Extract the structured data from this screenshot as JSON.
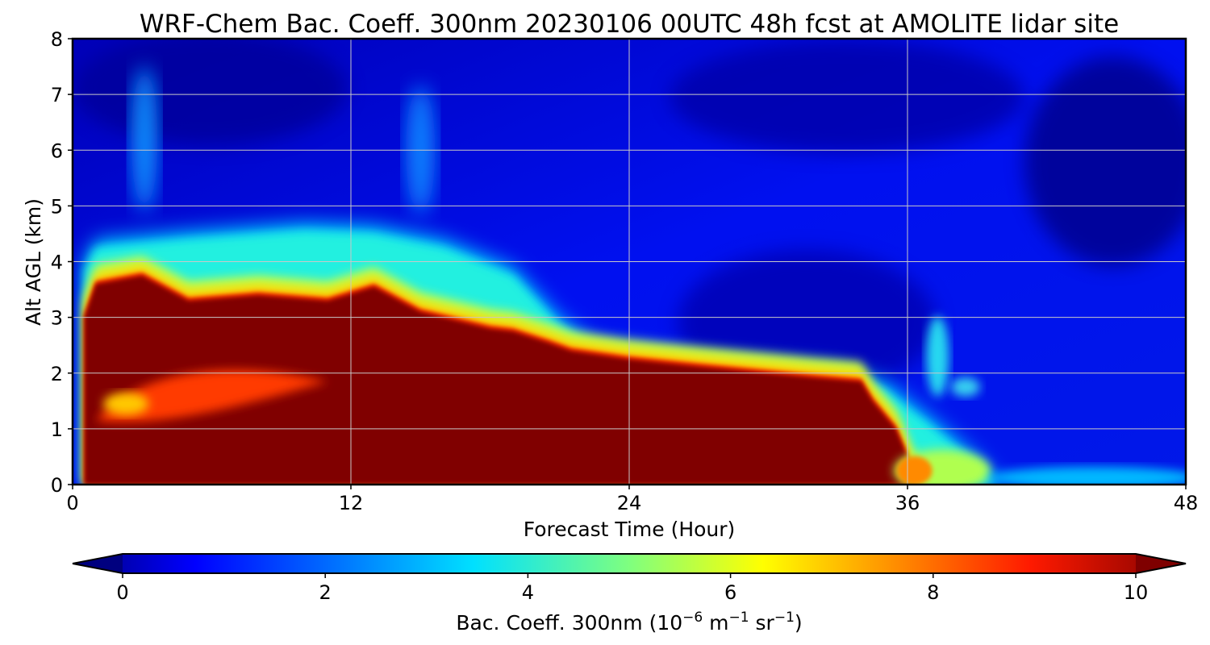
{
  "chart_data": {
    "type": "heatmap",
    "title": "WRF-Chem Bac. Coeff. 300nm  20230106 00UTC 48h fcst at AMOLITE lidar site",
    "xlabel": "Forecast Time (Hour)",
    "ylabel": "Alt AGL (km)",
    "xlim": [
      0,
      48
    ],
    "ylim": [
      0,
      8
    ],
    "xticks": [
      "0",
      "12",
      "24",
      "36",
      "48"
    ],
    "yticks": [
      "0",
      "1",
      "2",
      "3",
      "4",
      "5",
      "6",
      "7",
      "8"
    ],
    "grid": true,
    "colormap": "jet",
    "colorbar": {
      "label_main": "Bac. Coeff. 300nm  (10",
      "label_exp1": "−6",
      "label_mid": " m",
      "label_exp2": "−1",
      "label_mid2": " sr",
      "label_exp3": "−1",
      "label_end": ")",
      "range": [
        0,
        10
      ],
      "ticks": [
        "0",
        "2",
        "4",
        "6",
        "8",
        "10"
      ],
      "extend": "both",
      "placement": "bottom"
    },
    "features": {
      "saturated_layer_top_km": [
        {
          "x": 0.5,
          "y": 3.0
        },
        {
          "x": 1,
          "y": 3.6
        },
        {
          "x": 3,
          "y": 3.75
        },
        {
          "x": 5,
          "y": 3.3
        },
        {
          "x": 8,
          "y": 3.4
        },
        {
          "x": 11,
          "y": 3.3
        },
        {
          "x": 13,
          "y": 3.55
        },
        {
          "x": 15,
          "y": 3.1
        },
        {
          "x": 18,
          "y": 2.8
        },
        {
          "x": 19,
          "y": 2.75
        },
        {
          "x": 20.5,
          "y": 2.55
        },
        {
          "x": 21.5,
          "y": 2.4
        },
        {
          "x": 24,
          "y": 2.25
        },
        {
          "x": 27,
          "y": 2.12
        },
        {
          "x": 30,
          "y": 2.0
        },
        {
          "x": 32,
          "y": 1.92
        },
        {
          "x": 34,
          "y": 1.85
        },
        {
          "x": 34.5,
          "y": 1.5
        },
        {
          "x": 35.5,
          "y": 1.0
        },
        {
          "x": 36,
          "y": 0.5
        },
        {
          "x": 36.5,
          "y": 0.0
        }
      ],
      "aerosol_top_km": [
        {
          "x": 0.5,
          "y": 4.0
        },
        {
          "x": 1,
          "y": 4.4
        },
        {
          "x": 5,
          "y": 4.55
        },
        {
          "x": 10,
          "y": 4.7
        },
        {
          "x": 13,
          "y": 4.65
        },
        {
          "x": 16,
          "y": 4.4
        },
        {
          "x": 19,
          "y": 3.9
        },
        {
          "x": 21,
          "y": 3.0
        },
        {
          "x": 22.5,
          "y": 2.55
        },
        {
          "x": 26,
          "y": 2.35
        },
        {
          "x": 30,
          "y": 2.2
        },
        {
          "x": 33,
          "y": 2.1
        },
        {
          "x": 35,
          "y": 1.85
        },
        {
          "x": 37,
          "y": 1.2
        },
        {
          "x": 39,
          "y": 0.5
        },
        {
          "x": 40,
          "y": 0.0
        }
      ]
    }
  }
}
